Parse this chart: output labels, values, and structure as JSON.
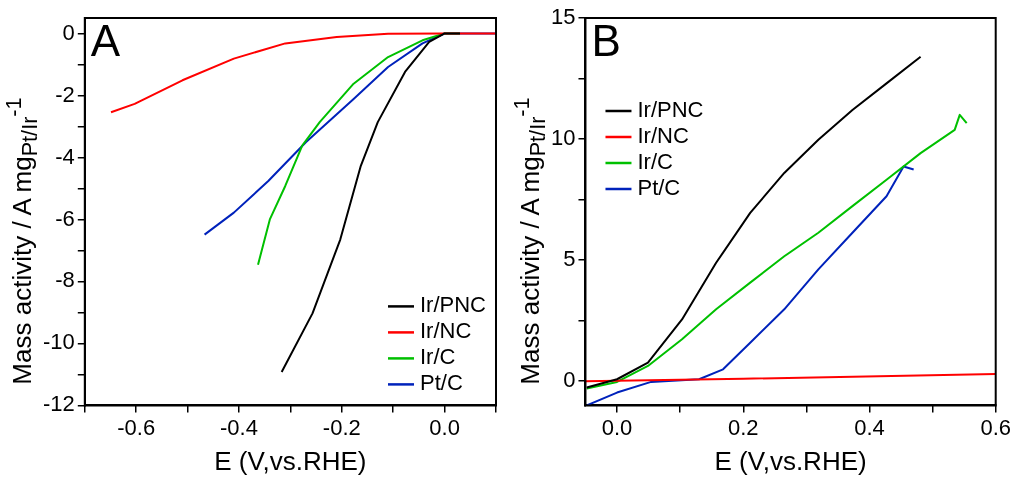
{
  "chart_data": [
    {
      "type": "line",
      "xlabel": "E (V,vs.RHE)",
      "ylabel": "Mass activity / A mg$_{Pt/Ir}$$^{-1}$",
      "annotations": [
        "A"
      ],
      "legend": "bottom right",
      "grid": false,
      "marker": "none",
      "line_style": "solid",
      "xlim": [
        -0.7,
        0.1
      ],
      "xticks": [
        {
          "value": -0.7,
          "label": null
        },
        {
          "value": -0.6,
          "label": "-0.6"
        },
        {
          "value": -0.5,
          "label": null
        },
        {
          "value": -0.4,
          "label": "-0.4"
        },
        {
          "value": -0.3,
          "label": null
        },
        {
          "value": -0.2,
          "label": "-0.2"
        },
        {
          "value": -0.1,
          "label": null
        },
        {
          "value": 0,
          "label": "0.0"
        },
        {
          "value": 0.1,
          "label": null
        }
      ],
      "ylim": [
        -12,
        0.5
      ],
      "yticks": [
        -12,
        {
          "value": -11,
          "label": null
        },
        -10,
        {
          "value": -9,
          "label": null
        },
        -8,
        {
          "value": -7,
          "label": null
        },
        -6,
        {
          "value": -5,
          "label": null
        },
        -4,
        {
          "value": -3,
          "label": null
        },
        -2,
        {
          "value": -1,
          "label": null
        },
        0
      ],
      "series": [
        {
          "name": "Ir/PNC",
          "color": "#000000",
          "x": [
            -0.317,
            -0.257,
            -0.203,
            -0.163,
            -0.13,
            -0.077,
            -0.03,
            0,
            0.03
          ],
          "values": [
            -10.92,
            -9.03,
            -6.65,
            -4.27,
            -2.86,
            -1.24,
            -0.27,
            0,
            0
          ]
        },
        {
          "name": "Ir/NC",
          "color": "#ff0000",
          "x": [
            -0.649,
            -0.603,
            -0.51,
            -0.41,
            -0.31,
            -0.21,
            -0.11,
            0,
            0.1
          ],
          "values": [
            -2.54,
            -2.27,
            -1.51,
            -0.81,
            -0.32,
            -0.11,
            -0.01,
            0,
            0
          ]
        },
        {
          "name": "Ir/C",
          "color": "#00c000",
          "x": [
            -0.363,
            -0.34,
            -0.31,
            -0.277,
            -0.243,
            -0.177,
            -0.11,
            -0.043,
            0,
            0.03
          ],
          "values": [
            -7.46,
            -6.0,
            -4.92,
            -3.62,
            -2.86,
            -1.62,
            -0.76,
            -0.22,
            0,
            0
          ]
        },
        {
          "name": "Pt/C",
          "color": "#0022bb",
          "x": [
            -0.467,
            -0.41,
            -0.343,
            -0.27,
            -0.177,
            -0.11,
            -0.043,
            0,
            0.1
          ],
          "values": [
            -6.49,
            -5.78,
            -4.76,
            -3.51,
            -2.11,
            -1.08,
            -0.32,
            0,
            0
          ]
        }
      ]
    },
    {
      "type": "line",
      "xlabel": "E (V,vs.RHE)",
      "ylabel": "Mass activity / A mg$_{Pt/Ir}$$^{-1}$",
      "annotations": [
        "B"
      ],
      "legend": "top left",
      "grid": false,
      "marker": "none",
      "line_style": "solid",
      "xlim": [
        -0.05,
        0.6
      ],
      "xticks": [
        {
          "value": 0,
          "label": "0.0"
        },
        {
          "value": 0.1,
          "label": null
        },
        {
          "value": 0.2,
          "label": "0.2"
        },
        {
          "value": 0.3,
          "label": null
        },
        {
          "value": 0.4,
          "label": "0.4"
        },
        {
          "value": 0.5,
          "label": null
        },
        {
          "value": 0.6,
          "label": "0.6"
        }
      ],
      "ylim": [
        -1,
        15
      ],
      "yticks": [
        0,
        {
          "value": 2.5,
          "label": null
        },
        5,
        {
          "value": 7.5,
          "label": null
        },
        10,
        {
          "value": 12.5,
          "label": null
        },
        15
      ],
      "series": [
        {
          "name": "Ir/PNC",
          "color": "#000000",
          "x": [
            -0.048,
            0,
            0.049,
            0.103,
            0.157,
            0.211,
            0.265,
            0.319,
            0.373,
            0.427,
            0.481
          ],
          "values": [
            -0.26,
            0.08,
            0.77,
            2.55,
            4.89,
            6.95,
            8.6,
            9.97,
            11.2,
            12.3,
            13.4
          ]
        },
        {
          "name": "Ir/NC",
          "color": "#ff0000",
          "x": [
            -0.05,
            0.2,
            0.6
          ],
          "values": [
            0,
            0.1,
            0.3
          ]
        },
        {
          "name": "Ir/C",
          "color": "#00c000",
          "x": [
            -0.048,
            0,
            0.049,
            0.103,
            0.157,
            0.211,
            0.265,
            0.319,
            0.373,
            0.427,
            0.481,
            0.535,
            0.543,
            0.554
          ],
          "values": [
            -0.3,
            -0.03,
            0.63,
            1.73,
            2.97,
            4.07,
            5.16,
            6.13,
            7.23,
            8.32,
            9.42,
            10.38,
            11.0,
            10.66
          ]
        },
        {
          "name": "Pt/C",
          "color": "#0022bb",
          "x": [
            -0.048,
            0,
            0.054,
            0.13,
            0.168,
            0.211,
            0.265,
            0.319,
            0.373,
            0.427,
            0.454,
            0.47
          ],
          "values": [
            -1.0,
            -0.47,
            -0.03,
            0.08,
            0.49,
            1.59,
            2.97,
            4.62,
            6.13,
            7.64,
            8.87,
            8.74
          ]
        }
      ]
    }
  ]
}
